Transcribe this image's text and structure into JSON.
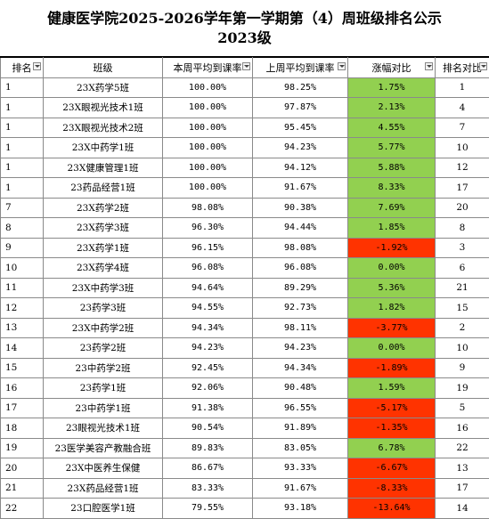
{
  "title": {
    "line1": "健康医学院2025-2026学年第一学期第（4）周班级排名公示",
    "line2": "2023级"
  },
  "headers": {
    "rank": "排名",
    "class": "班级",
    "this_week": "本周平均到课率",
    "last_week": "上周平均到课率",
    "change": "涨幅对比",
    "last_rank": "排名对比"
  },
  "colors": {
    "increase": "#92d050",
    "decrease": "#ff3300"
  },
  "rows": [
    {
      "rank": "1",
      "class": "23X药学5班",
      "this_week": "100.00%",
      "last_week": "98.25%",
      "change": "1.75%",
      "trend": "up",
      "last_rank": "1"
    },
    {
      "rank": "1",
      "class": "23X眼视光技术1班",
      "this_week": "100.00%",
      "last_week": "97.87%",
      "change": "2.13%",
      "trend": "up",
      "last_rank": "4"
    },
    {
      "rank": "1",
      "class": "23X眼视光技术2班",
      "this_week": "100.00%",
      "last_week": "95.45%",
      "change": "4.55%",
      "trend": "up",
      "last_rank": "7"
    },
    {
      "rank": "1",
      "class": "23X中药学1班",
      "this_week": "100.00%",
      "last_week": "94.23%",
      "change": "5.77%",
      "trend": "up",
      "last_rank": "10"
    },
    {
      "rank": "1",
      "class": "23X健康管理1班",
      "this_week": "100.00%",
      "last_week": "94.12%",
      "change": "5.88%",
      "trend": "up",
      "last_rank": "12"
    },
    {
      "rank": "1",
      "class": "23药品经营1班",
      "this_week": "100.00%",
      "last_week": "91.67%",
      "change": "8.33%",
      "trend": "up",
      "last_rank": "17"
    },
    {
      "rank": "7",
      "class": "23X药学2班",
      "this_week": "98.08%",
      "last_week": "90.38%",
      "change": "7.69%",
      "trend": "up",
      "last_rank": "20"
    },
    {
      "rank": "8",
      "class": "23X药学3班",
      "this_week": "96.30%",
      "last_week": "94.44%",
      "change": "1.85%",
      "trend": "up",
      "last_rank": "8"
    },
    {
      "rank": "9",
      "class": "23X药学1班",
      "this_week": "96.15%",
      "last_week": "98.08%",
      "change": "-1.92%",
      "trend": "down",
      "last_rank": "3"
    },
    {
      "rank": "10",
      "class": "23X药学4班",
      "this_week": "96.08%",
      "last_week": "96.08%",
      "change": "0.00%",
      "trend": "flat",
      "last_rank": "6"
    },
    {
      "rank": "11",
      "class": "23X中药学3班",
      "this_week": "94.64%",
      "last_week": "89.29%",
      "change": "5.36%",
      "trend": "up",
      "last_rank": "21"
    },
    {
      "rank": "12",
      "class": "23药学3班",
      "this_week": "94.55%",
      "last_week": "92.73%",
      "change": "1.82%",
      "trend": "up",
      "last_rank": "15"
    },
    {
      "rank": "13",
      "class": "23X中药学2班",
      "this_week": "94.34%",
      "last_week": "98.11%",
      "change": "-3.77%",
      "trend": "down",
      "last_rank": "2"
    },
    {
      "rank": "14",
      "class": "23药学2班",
      "this_week": "94.23%",
      "last_week": "94.23%",
      "change": "0.00%",
      "trend": "flat",
      "last_rank": "10"
    },
    {
      "rank": "15",
      "class": "23中药学2班",
      "this_week": "92.45%",
      "last_week": "94.34%",
      "change": "-1.89%",
      "trend": "down",
      "last_rank": "9"
    },
    {
      "rank": "16",
      "class": "23药学1班",
      "this_week": "92.06%",
      "last_week": "90.48%",
      "change": "1.59%",
      "trend": "up",
      "last_rank": "19"
    },
    {
      "rank": "17",
      "class": "23中药学1班",
      "this_week": "91.38%",
      "last_week": "96.55%",
      "change": "-5.17%",
      "trend": "down",
      "last_rank": "5"
    },
    {
      "rank": "18",
      "class": "23眼视光技术1班",
      "this_week": "90.54%",
      "last_week": "91.89%",
      "change": "-1.35%",
      "trend": "down",
      "last_rank": "16"
    },
    {
      "rank": "19",
      "class": "23医学美容产教融合班",
      "this_week": "89.83%",
      "last_week": "83.05%",
      "change": "6.78%",
      "trend": "up",
      "last_rank": "22"
    },
    {
      "rank": "20",
      "class": "23X中医养生保健",
      "this_week": "86.67%",
      "last_week": "93.33%",
      "change": "-6.67%",
      "trend": "down",
      "last_rank": "13"
    },
    {
      "rank": "21",
      "class": "23X药品经营1班",
      "this_week": "83.33%",
      "last_week": "91.67%",
      "change": "-8.33%",
      "trend": "down",
      "last_rank": "17"
    },
    {
      "rank": "22",
      "class": "23口腔医学1班",
      "this_week": "79.55%",
      "last_week": "93.18%",
      "change": "-13.64%",
      "trend": "down",
      "last_rank": "14"
    }
  ]
}
